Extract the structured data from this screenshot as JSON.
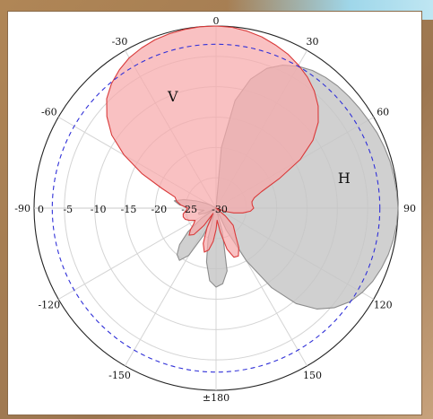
{
  "chart_data": {
    "type": "polar",
    "title": "",
    "angle_unit": "degrees",
    "angle_ticks": [
      {
        "deg": 0,
        "label": "0"
      },
      {
        "deg": 30,
        "label": "30"
      },
      {
        "deg": 60,
        "label": "60"
      },
      {
        "deg": 90,
        "label": "90"
      },
      {
        "deg": 120,
        "label": "120"
      },
      {
        "deg": 150,
        "label": "150"
      },
      {
        "deg": 180,
        "label": "±180"
      },
      {
        "deg": -150,
        "label": "-150"
      },
      {
        "deg": -120,
        "label": "-120"
      },
      {
        "deg": -90,
        "label": "-90"
      },
      {
        "deg": -60,
        "label": "-60"
      },
      {
        "deg": -30,
        "label": "-30"
      }
    ],
    "radial_range": [
      -30,
      0
    ],
    "radial_ticks": [
      {
        "value": 0,
        "label": "0"
      },
      {
        "value": -5,
        "label": "-5"
      },
      {
        "value": -10,
        "label": "-10"
      },
      {
        "value": -15,
        "label": "-15"
      },
      {
        "value": -20,
        "label": "-20"
      },
      {
        "value": -25,
        "label": "-25"
      },
      {
        "value": -30,
        "label": "-30"
      }
    ],
    "reference_circle": {
      "value": -3,
      "style": "dashed",
      "color": "#3030d8"
    },
    "series": [
      {
        "name": "H",
        "color_fill": "#c6c6c6",
        "color_line": "#8c8c8c",
        "label_angle_deg": 79,
        "label_value": -8.5,
        "points": [
          [
            0,
            -30
          ],
          [
            5,
            -20
          ],
          [
            10,
            -12
          ],
          [
            15,
            -8
          ],
          [
            20,
            -5.5
          ],
          [
            25,
            -4
          ],
          [
            30,
            -3
          ],
          [
            35,
            -2.3
          ],
          [
            40,
            -1.9
          ],
          [
            45,
            -1.6
          ],
          [
            50,
            -1.4
          ],
          [
            55,
            -1.2
          ],
          [
            60,
            -1
          ],
          [
            65,
            -0.7
          ],
          [
            70,
            -0.5
          ],
          [
            75,
            -0.3
          ],
          [
            80,
            -0.2
          ],
          [
            85,
            -0.1
          ],
          [
            90,
            0
          ],
          [
            95,
            -0.1
          ],
          [
            100,
            -0.3
          ],
          [
            105,
            -0.6
          ],
          [
            110,
            -1
          ],
          [
            115,
            -1.5
          ],
          [
            120,
            -2.2
          ],
          [
            125,
            -3.1
          ],
          [
            130,
            -4.5
          ],
          [
            135,
            -6.5
          ],
          [
            140,
            -9.5
          ],
          [
            145,
            -14
          ],
          [
            150,
            -20
          ],
          [
            155,
            -26
          ],
          [
            160,
            -30
          ],
          [
            165,
            -26
          ],
          [
            170,
            -19.5
          ],
          [
            175,
            -17.5
          ],
          [
            180,
            -17
          ],
          [
            185,
            -18
          ],
          [
            190,
            -21
          ],
          [
            195,
            -25
          ],
          [
            200,
            -29
          ],
          [
            205,
            -25
          ],
          [
            210,
            -21
          ],
          [
            215,
            -19.5
          ],
          [
            220,
            -20
          ],
          [
            225,
            -21.5
          ],
          [
            230,
            -24
          ],
          [
            235,
            -27
          ],
          [
            240,
            -30
          ],
          [
            245,
            -28
          ],
          [
            250,
            -27
          ],
          [
            255,
            -27
          ],
          [
            260,
            -28
          ],
          [
            265,
            -27
          ],
          [
            270,
            -26
          ],
          [
            275,
            -24
          ],
          [
            280,
            -23
          ],
          [
            285,
            -24.5
          ],
          [
            290,
            -26.5
          ],
          [
            295,
            -28
          ],
          [
            300,
            -29
          ],
          [
            310,
            -30
          ],
          [
            320,
            -30
          ],
          [
            330,
            -30
          ],
          [
            340,
            -30
          ],
          [
            350,
            -30
          ]
        ]
      },
      {
        "name": "V",
        "color_fill": "#f7a9ab",
        "color_line": "#d93a3a",
        "label_angle_deg": -22,
        "label_value": -11,
        "points": [
          [
            0,
            0
          ],
          [
            5,
            -0.1
          ],
          [
            10,
            -0.4
          ],
          [
            15,
            -0.8
          ],
          [
            20,
            -1.4
          ],
          [
            25,
            -2
          ],
          [
            30,
            -2.8
          ],
          [
            35,
            -3.7
          ],
          [
            40,
            -4.8
          ],
          [
            45,
            -6.2
          ],
          [
            50,
            -8
          ],
          [
            55,
            -10.5
          ],
          [
            60,
            -14
          ],
          [
            65,
            -18.5
          ],
          [
            70,
            -22
          ],
          [
            75,
            -23.5
          ],
          [
            80,
            -24
          ],
          [
            85,
            -24
          ],
          [
            90,
            -23.8
          ],
          [
            95,
            -24.3
          ],
          [
            100,
            -25.5
          ],
          [
            105,
            -27
          ],
          [
            110,
            -28.5
          ],
          [
            120,
            -30
          ],
          [
            130,
            -28
          ],
          [
            135,
            -26
          ],
          [
            140,
            -25.3
          ],
          [
            145,
            -24.3
          ],
          [
            150,
            -22.5
          ],
          [
            155,
            -21.3
          ],
          [
            160,
            -21.4
          ],
          [
            165,
            -23
          ],
          [
            170,
            -26
          ],
          [
            175,
            -28
          ],
          [
            180,
            -26.5
          ],
          [
            185,
            -24.5
          ],
          [
            190,
            -23
          ],
          [
            195,
            -22.5
          ],
          [
            200,
            -23.8
          ],
          [
            205,
            -26.5
          ],
          [
            210,
            -29
          ],
          [
            215,
            -26.5
          ],
          [
            220,
            -24.3
          ],
          [
            225,
            -23.7
          ],
          [
            230,
            -24.5
          ],
          [
            235,
            -25.5
          ],
          [
            240,
            -26
          ],
          [
            245,
            -25.2
          ],
          [
            250,
            -24.6
          ],
          [
            255,
            -24.4
          ],
          [
            260,
            -24.5
          ],
          [
            265,
            -25
          ],
          [
            270,
            -25.3
          ],
          [
            275,
            -24.2
          ],
          [
            280,
            -23.4
          ],
          [
            285,
            -23
          ],
          [
            290,
            -20.5
          ],
          [
            295,
            -16.5
          ],
          [
            300,
            -12.5
          ],
          [
            305,
            -9
          ],
          [
            310,
            -6.5
          ],
          [
            315,
            -4.5
          ],
          [
            320,
            -3.2
          ],
          [
            325,
            -2.2
          ],
          [
            330,
            -1.4
          ],
          [
            335,
            -0.9
          ],
          [
            340,
            -0.5
          ],
          [
            345,
            -0.25
          ],
          [
            350,
            -0.1
          ],
          [
            355,
            0
          ]
        ]
      }
    ],
    "grid": true,
    "legend": "none"
  }
}
